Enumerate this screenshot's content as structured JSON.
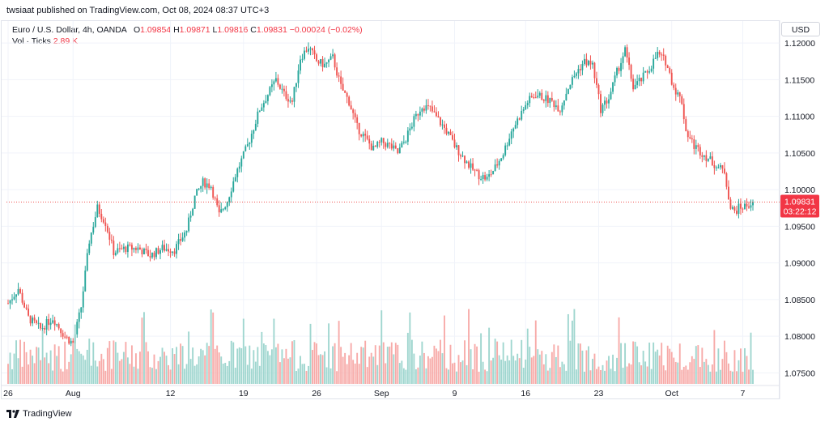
{
  "header": {
    "attribution": "twsiaat published on TradingView.com, Oct 08, 2024 08:37 UTC+3"
  },
  "legend": {
    "symbol": "Euro / U.S. Dollar, 4h, OANDA",
    "o_label": "O",
    "o_value": "1.09854",
    "h_label": "H",
    "h_value": "1.09871",
    "l_label": "L",
    "l_value": "1.09816",
    "c_label": "C",
    "c_value": "1.09831",
    "change": "−0.00024 (−0.02%)",
    "vol_label": "Vol · Ticks",
    "vol_value": "2.89 K"
  },
  "currency_button": "USD",
  "price_badge": {
    "price": "1.09831",
    "countdown": "03:22:12"
  },
  "footer": {
    "brand": "TradingView"
  },
  "colors": {
    "up": "#26a69a",
    "down": "#ef5350",
    "vol_up": "#9fd6cf",
    "vol_down": "#f7aaa8"
  },
  "chart_data": {
    "type": "candlestick",
    "symbol": "EURUSD",
    "interval": "4h",
    "y_ticks": [
      "1.12000",
      "1.11500",
      "1.11000",
      "1.10500",
      "1.10000",
      "1.09500",
      "1.09000",
      "1.08500",
      "1.08000",
      "1.07500"
    ],
    "ylim": [
      1.0735,
      1.123
    ],
    "x_ticks": [
      "26",
      "Aug",
      "12",
      "19",
      "26",
      "Sep",
      "9",
      "16",
      "23",
      "Oct",
      "7"
    ],
    "x_tick_positions": [
      0,
      32,
      80,
      116,
      152,
      184,
      220,
      255,
      291,
      327,
      362
    ],
    "last_price": 1.09831,
    "close_path": [
      [
        0,
        1.0845
      ],
      [
        5,
        1.0865
      ],
      [
        10,
        1.0825
      ],
      [
        16,
        1.081
      ],
      [
        22,
        1.0825
      ],
      [
        28,
        1.08
      ],
      [
        32,
        1.079
      ],
      [
        36,
        1.084
      ],
      [
        40,
        1.093
      ],
      [
        44,
        1.0975
      ],
      [
        48,
        1.0955
      ],
      [
        52,
        1.0915
      ],
      [
        58,
        1.092
      ],
      [
        64,
        1.092
      ],
      [
        70,
        1.091
      ],
      [
        76,
        1.092
      ],
      [
        82,
        1.0918
      ],
      [
        88,
        1.0945
      ],
      [
        92,
        1.099
      ],
      [
        96,
        1.101
      ],
      [
        100,
        1.1005
      ],
      [
        104,
        1.0965
      ],
      [
        108,
        1.0985
      ],
      [
        112,
        1.102
      ],
      [
        118,
        1.106
      ],
      [
        124,
        1.111
      ],
      [
        128,
        1.113
      ],
      [
        132,
        1.115
      ],
      [
        136,
        1.113
      ],
      [
        140,
        1.112
      ],
      [
        144,
        1.118
      ],
      [
        148,
        1.1195
      ],
      [
        152,
        1.1175
      ],
      [
        156,
        1.117
      ],
      [
        160,
        1.118
      ],
      [
        164,
        1.114
      ],
      [
        168,
        1.112
      ],
      [
        172,
        1.1085
      ],
      [
        176,
        1.107
      ],
      [
        180,
        1.1055
      ],
      [
        184,
        1.1065
      ],
      [
        188,
        1.106
      ],
      [
        192,
        1.105
      ],
      [
        196,
        1.107
      ],
      [
        200,
        1.1095
      ],
      [
        204,
        1.1115
      ],
      [
        208,
        1.111
      ],
      [
        212,
        1.1095
      ],
      [
        216,
        1.108
      ],
      [
        220,
        1.106
      ],
      [
        224,
        1.1045
      ],
      [
        228,
        1.103
      ],
      [
        232,
        1.102
      ],
      [
        236,
        1.1015
      ],
      [
        240,
        1.103
      ],
      [
        244,
        1.105
      ],
      [
        248,
        1.108
      ],
      [
        252,
        1.11
      ],
      [
        256,
        1.112
      ],
      [
        260,
        1.113
      ],
      [
        264,
        1.1125
      ],
      [
        268,
        1.112
      ],
      [
        272,
        1.111
      ],
      [
        276,
        1.114
      ],
      [
        280,
        1.116
      ],
      [
        284,
        1.1175
      ],
      [
        288,
        1.117
      ],
      [
        292,
        1.111
      ],
      [
        296,
        1.1125
      ],
      [
        300,
        1.116
      ],
      [
        304,
        1.119
      ],
      [
        308,
        1.114
      ],
      [
        312,
        1.115
      ],
      [
        316,
        1.1165
      ],
      [
        320,
        1.1185
      ],
      [
        324,
        1.1175
      ],
      [
        328,
        1.114
      ],
      [
        332,
        1.112
      ],
      [
        334,
        1.108
      ],
      [
        338,
        1.106
      ],
      [
        342,
        1.105
      ],
      [
        346,
        1.104
      ],
      [
        350,
        1.103
      ],
      [
        353,
        1.1025
      ],
      [
        356,
        1.0975
      ],
      [
        358,
        1.097
      ],
      [
        360,
        1.0975
      ],
      [
        364,
        1.0978
      ],
      [
        367,
        1.0983
      ]
    ],
    "volume_scale_max": 15000
  }
}
